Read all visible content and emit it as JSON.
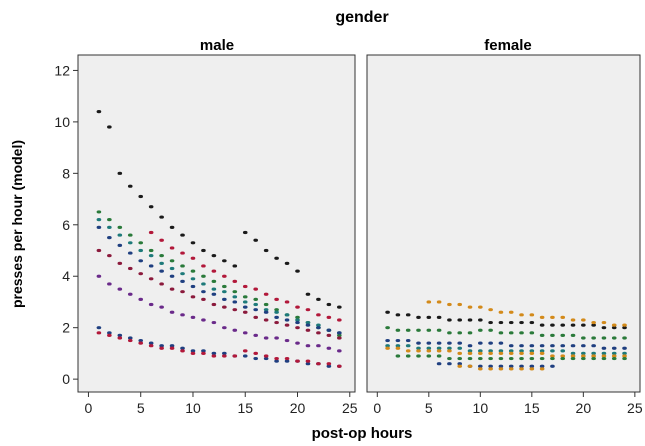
{
  "chart_data": {
    "type": "scatter",
    "title": "gender",
    "xlabel": "post-op hours",
    "ylabel": "presses per hour (model)",
    "xlim": [
      -1,
      25.5
    ],
    "ylim": [
      -0.5,
      12.6
    ],
    "x_ticks": [
      0,
      5,
      10,
      15,
      20,
      25
    ],
    "y_ticks": [
      0,
      2,
      4,
      6,
      8,
      10,
      12
    ],
    "grid": false,
    "panel_background": "#efefef",
    "point_colors": [
      "#1a1a1a",
      "#8b1a3c",
      "#1f3f80",
      "#2a7a3a",
      "#6a2a8a",
      "#b2183a",
      "#d38a1a",
      "#1e7a7a",
      "#5a3a1a"
    ],
    "panels": [
      {
        "name": "male",
        "series": [
          {
            "x": [
              1,
              2,
              3,
              4,
              5,
              6,
              7,
              8,
              9,
              10,
              11,
              12,
              13,
              14,
              15,
              16,
              17,
              18,
              19,
              20,
              21,
              22,
              23,
              24
            ],
            "values": [
              10.4,
              9.8,
              8.0,
              7.5,
              7.1,
              6.7,
              6.3,
              5.9,
              5.6,
              5.3,
              5.0,
              4.8,
              4.6,
              4.4,
              5.7,
              5.4,
              5.0,
              4.7,
              4.5,
              4.2,
              3.3,
              3.1,
              2.9,
              2.8
            ],
            "color": "#1a1a1a"
          },
          {
            "x": [
              1,
              2,
              3,
              4,
              5,
              6,
              7,
              8,
              9,
              10,
              11,
              12,
              13,
              14,
              15,
              16,
              17,
              18,
              19,
              20,
              21,
              22,
              23,
              24
            ],
            "values": [
              6.5,
              6.2,
              5.9,
              5.6,
              5.3,
              5.0,
              4.8,
              4.6,
              4.4,
              4.2,
              4.0,
              3.8,
              3.6,
              3.4,
              3.2,
              3.1,
              2.9,
              2.7,
              2.5,
              2.4,
              2.2,
              2.0,
              1.9,
              1.7
            ],
            "color": "#2a7a3a"
          },
          {
            "x": [
              1,
              2,
              3,
              4,
              5,
              6,
              7,
              8,
              9,
              10,
              11,
              12,
              13,
              14,
              15,
              16,
              17,
              18,
              19,
              20,
              21,
              22,
              23,
              24
            ],
            "values": [
              6.2,
              5.9,
              5.6,
              5.3,
              5.0,
              4.8,
              4.5,
              4.3,
              4.1,
              3.9,
              3.7,
              3.5,
              3.4,
              3.2,
              3.0,
              2.9,
              2.7,
              2.6,
              2.5,
              2.3,
              2.2,
              2.1,
              1.9,
              1.8
            ],
            "color": "#1e7a7a"
          },
          {
            "x": [
              1,
              2,
              3,
              4,
              5,
              6,
              7,
              8,
              9,
              10,
              11,
              12,
              13,
              14,
              15,
              16,
              17,
              18,
              19,
              20,
              21,
              22,
              23,
              24
            ],
            "values": [
              5.9,
              5.5,
              5.2,
              4.9,
              4.6,
              4.4,
              4.2,
              4.0,
              3.8,
              3.6,
              3.4,
              3.3,
              3.1,
              3.0,
              2.8,
              2.7,
              2.6,
              2.4,
              2.3,
              2.2,
              2.1,
              2.0,
              1.9,
              1.8
            ],
            "color": "#1f3f80"
          },
          {
            "x": [
              1,
              2,
              3,
              4,
              5,
              6,
              7,
              8,
              9,
              10,
              11,
              12,
              13,
              14,
              15,
              16,
              17,
              18,
              19,
              20,
              21,
              22,
              23,
              24
            ],
            "values": [
              5.0,
              4.8,
              4.5,
              4.3,
              4.1,
              3.9,
              3.7,
              3.5,
              3.4,
              3.2,
              3.1,
              2.9,
              2.8,
              2.7,
              2.6,
              2.4,
              2.3,
              2.2,
              2.1,
              2.0,
              1.9,
              1.8,
              1.7,
              1.6
            ],
            "color": "#8b1a3c"
          },
          {
            "x": [
              6,
              7,
              8,
              9,
              10,
              11,
              12,
              13,
              14,
              15,
              16,
              17,
              18,
              19,
              20,
              21,
              22,
              23,
              24
            ],
            "values": [
              5.7,
              5.4,
              5.1,
              4.9,
              4.7,
              4.4,
              4.2,
              4.0,
              3.8,
              3.6,
              3.5,
              3.3,
              3.1,
              3.0,
              2.8,
              2.7,
              2.5,
              2.4,
              2.3
            ],
            "color": "#b2183a"
          },
          {
            "x": [
              1,
              2,
              3,
              4,
              5,
              6,
              7,
              8,
              9,
              10,
              11,
              12,
              13,
              14,
              15,
              16,
              17,
              18,
              19,
              20,
              21,
              22,
              23,
              24
            ],
            "values": [
              4.0,
              3.7,
              3.5,
              3.3,
              3.1,
              2.9,
              2.8,
              2.6,
              2.5,
              2.4,
              2.3,
              2.2,
              2.0,
              1.9,
              1.8,
              1.7,
              1.6,
              1.6,
              1.5,
              1.4,
              1.3,
              1.3,
              1.2,
              1.1
            ],
            "color": "#6a2a8a"
          },
          {
            "x": [
              1,
              2,
              3,
              4,
              5,
              6,
              7,
              8,
              9,
              10,
              11,
              12,
              13,
              14,
              15,
              16,
              17,
              18,
              19,
              20,
              21,
              22,
              23,
              24
            ],
            "values": [
              2.0,
              1.8,
              1.7,
              1.6,
              1.5,
              1.4,
              1.3,
              1.3,
              1.2,
              1.1,
              1.1,
              1.0,
              1.0,
              0.9,
              0.9,
              0.8,
              0.8,
              0.7,
              0.7,
              0.7,
              0.6,
              0.6,
              0.5,
              0.5
            ],
            "color": "#1f3f80"
          },
          {
            "x": [
              1,
              2,
              3,
              4,
              5,
              6,
              7,
              8,
              9,
              10,
              11,
              12,
              13,
              14,
              15,
              16,
              17,
              18,
              19,
              20,
              21,
              22,
              23,
              24
            ],
            "values": [
              1.8,
              1.7,
              1.6,
              1.5,
              1.4,
              1.3,
              1.2,
              1.2,
              1.1,
              1.0,
              1.0,
              0.9,
              0.9,
              0.9,
              1.1,
              1.0,
              0.9,
              0.8,
              0.8,
              0.7,
              0.7,
              0.6,
              0.6,
              0.5
            ],
            "color": "#b2183a"
          }
        ]
      },
      {
        "name": "female",
        "series": [
          {
            "x": [
              1,
              2,
              3,
              4,
              5,
              6,
              7,
              8,
              9,
              10,
              11,
              12,
              13,
              14,
              15,
              16,
              17,
              18,
              19,
              20,
              21,
              22,
              23,
              24
            ],
            "values": [
              2.6,
              2.5,
              2.5,
              2.4,
              2.4,
              2.4,
              2.3,
              2.3,
              2.3,
              2.3,
              2.2,
              2.2,
              2.2,
              2.2,
              2.2,
              2.1,
              2.1,
              2.1,
              2.1,
              2.1,
              2.1,
              2.0,
              2.0,
              2.0
            ],
            "color": "#1a1a1a"
          },
          {
            "x": [
              5,
              6,
              7,
              8,
              9,
              10,
              11,
              12,
              13,
              14,
              15,
              16,
              17,
              18,
              19,
              20,
              21,
              22,
              23,
              24
            ],
            "values": [
              3.0,
              3.0,
              2.9,
              2.9,
              2.8,
              2.8,
              2.7,
              2.6,
              2.6,
              2.5,
              2.5,
              2.4,
              2.4,
              2.4,
              2.3,
              2.3,
              2.2,
              2.2,
              2.1,
              2.1
            ],
            "color": "#d38a1a"
          },
          {
            "x": [
              1,
              2,
              3,
              4,
              5,
              6,
              7,
              8,
              9,
              10,
              11,
              12,
              13,
              14,
              15,
              16,
              17,
              18,
              19,
              20,
              21,
              22,
              23,
              24
            ],
            "values": [
              2.0,
              1.9,
              1.9,
              1.9,
              1.9,
              1.9,
              1.8,
              1.8,
              1.8,
              1.9,
              1.9,
              1.8,
              1.8,
              1.8,
              1.8,
              1.7,
              1.7,
              1.7,
              1.7,
              1.6,
              1.6,
              1.6,
              1.6,
              1.6
            ],
            "color": "#2a7a3a"
          },
          {
            "x": [
              1,
              2,
              3,
              4,
              5,
              6,
              7,
              8,
              9,
              10,
              11,
              12,
              13,
              14,
              15,
              16,
              17,
              18,
              19,
              20,
              21,
              22,
              23,
              24
            ],
            "values": [
              1.5,
              1.5,
              1.5,
              1.4,
              1.4,
              1.4,
              1.4,
              1.4,
              1.3,
              1.4,
              1.4,
              1.4,
              1.3,
              1.3,
              1.3,
              1.3,
              1.3,
              1.3,
              1.3,
              1.3,
              1.3,
              1.2,
              1.2,
              1.2
            ],
            "color": "#1f3f80"
          },
          {
            "x": [
              1,
              2,
              3,
              4,
              5,
              6,
              7,
              8,
              9,
              10,
              11,
              12,
              13,
              14,
              15,
              16,
              17,
              18,
              19,
              20,
              21,
              22,
              23,
              24
            ],
            "values": [
              1.3,
              1.3,
              1.3,
              1.2,
              1.2,
              1.2,
              1.2,
              1.2,
              1.1,
              1.1,
              1.1,
              1.1,
              1.1,
              1.1,
              1.1,
              1.1,
              1.1,
              1.1,
              1.0,
              1.0,
              1.0,
              1.0,
              1.0,
              1.0
            ],
            "color": "#1e7a7a"
          },
          {
            "x": [
              1,
              2,
              3,
              4,
              5,
              6,
              7,
              8,
              9,
              10,
              11,
              12,
              13,
              14,
              15,
              16,
              17,
              18,
              19,
              20,
              21,
              22,
              23,
              24
            ],
            "values": [
              1.2,
              1.2,
              1.1,
              1.1,
              1.1,
              1.1,
              1.1,
              1.0,
              1.0,
              1.0,
              1.0,
              1.0,
              1.0,
              1.0,
              1.0,
              1.0,
              0.9,
              0.9,
              0.9,
              0.9,
              0.9,
              0.9,
              0.9,
              0.9
            ],
            "color": "#d38a1a"
          },
          {
            "x": [
              2,
              3,
              4,
              5,
              6,
              7,
              8,
              9,
              10,
              11,
              12,
              13,
              14,
              15,
              16,
              17,
              18,
              19,
              20,
              21,
              22,
              23,
              24
            ],
            "values": [
              0.9,
              0.9,
              0.9,
              0.9,
              0.9,
              0.8,
              0.8,
              0.8,
              0.8,
              0.8,
              0.8,
              0.8,
              0.8,
              0.8,
              0.8,
              0.8,
              0.8,
              0.8,
              0.8,
              0.8,
              0.8,
              0.8,
              0.8
            ],
            "color": "#2a7a3a"
          },
          {
            "x": [
              6,
              7,
              8,
              9,
              10,
              11,
              12,
              13,
              14,
              15,
              16,
              17
            ],
            "values": [
              0.6,
              0.6,
              0.6,
              0.5,
              0.5,
              0.5,
              0.5,
              0.5,
              0.5,
              0.5,
              0.5,
              0.5
            ],
            "color": "#1f3f80"
          },
          {
            "x": [
              8,
              9,
              10,
              11,
              12,
              13,
              14,
              15,
              16
            ],
            "values": [
              0.5,
              0.5,
              0.4,
              0.4,
              0.4,
              0.4,
              0.4,
              0.4,
              0.4
            ],
            "color": "#d38a1a"
          }
        ]
      }
    ]
  }
}
